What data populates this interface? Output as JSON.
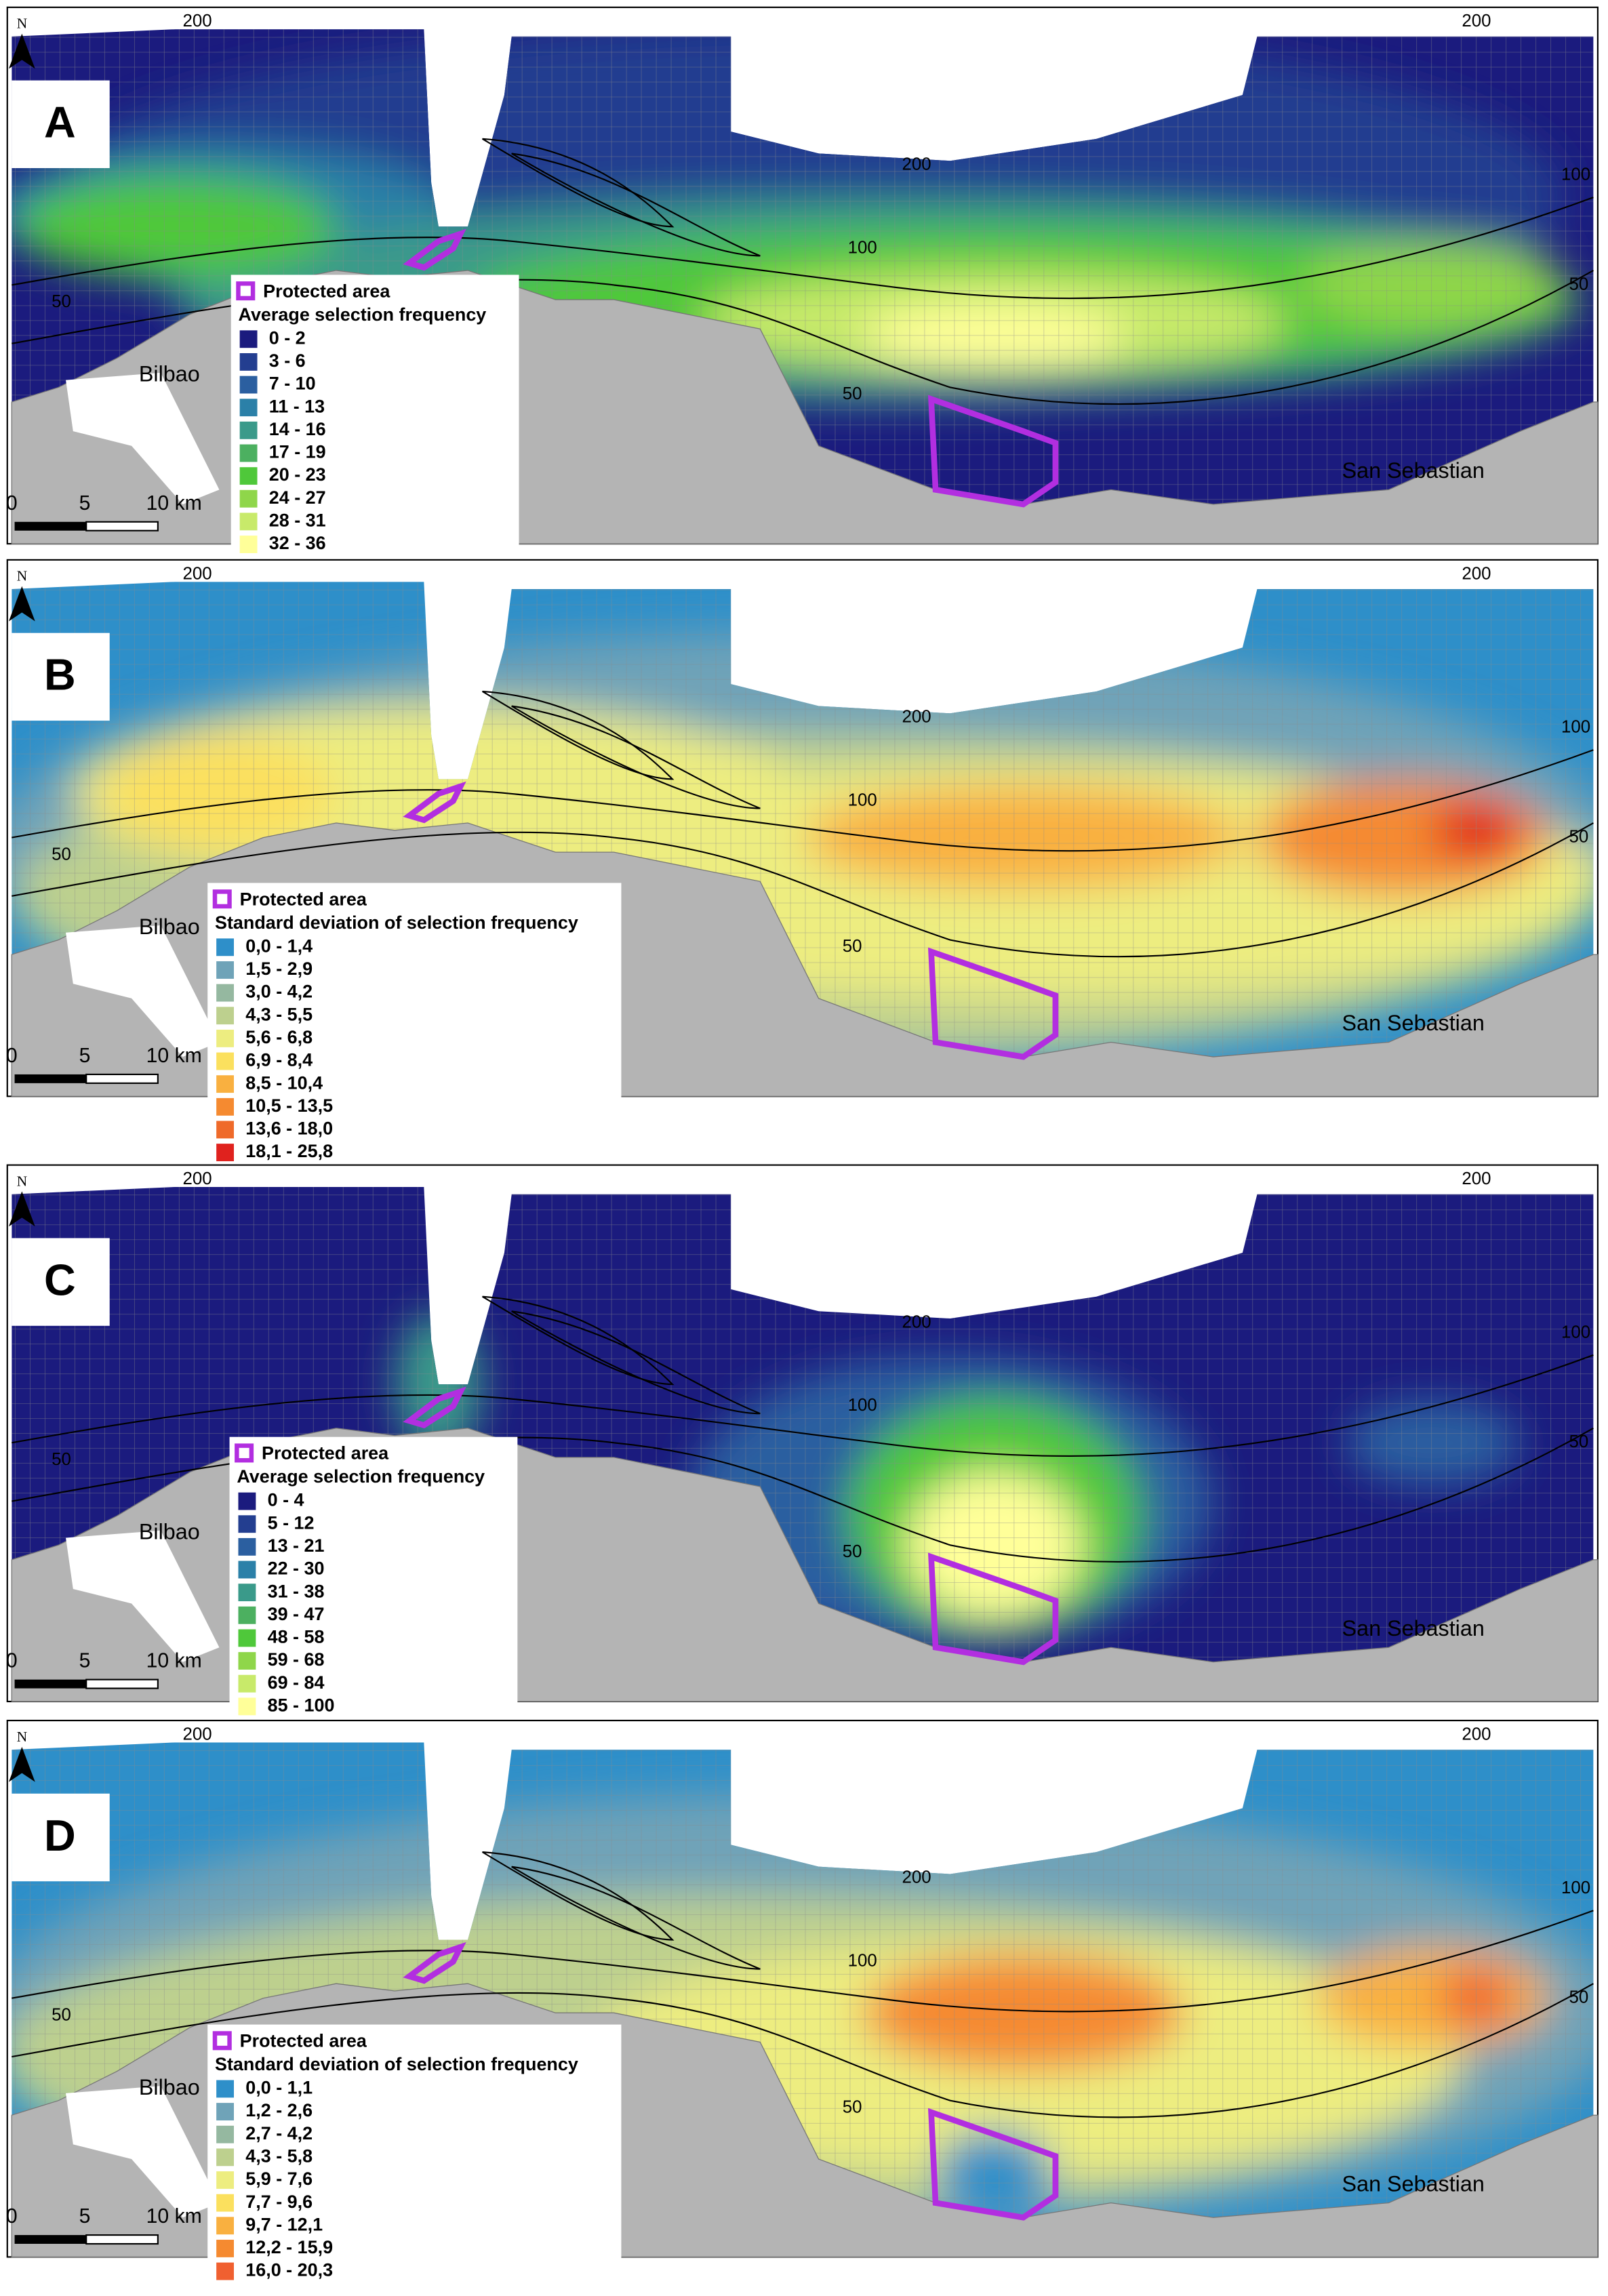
{
  "panels": [
    {
      "label": "A",
      "north": "N",
      "places": [
        "Bilbao",
        "San Sebastian"
      ],
      "contours": [
        "200",
        "200",
        "200",
        "100",
        "100",
        "50",
        "50",
        "50"
      ],
      "scale": [
        "0",
        "5",
        "10 km"
      ],
      "legend": {
        "protected": "Protected area",
        "title": "Average selection frequency",
        "items": [
          {
            "label": "0 - 2",
            "color": "#1b1b7e"
          },
          {
            "label": "3 - 6",
            "color": "#233e90"
          },
          {
            "label": "7 - 10",
            "color": "#2b5fa0"
          },
          {
            "label": "11 - 13",
            "color": "#2b80a8"
          },
          {
            "label": "14 - 16",
            "color": "#3a9a8a"
          },
          {
            "label": "17 - 19",
            "color": "#4cb060"
          },
          {
            "label": "20 - 23",
            "color": "#4fc83a"
          },
          {
            "label": "24 - 27",
            "color": "#8fd64a"
          },
          {
            "label": "28 - 31",
            "color": "#c8ea6a"
          },
          {
            "label": "32 - 36",
            "color": "#ffff99"
          }
        ]
      }
    },
    {
      "label": "B",
      "north": "N",
      "places": [
        "Bilbao",
        "San Sebastian"
      ],
      "contours": [
        "200",
        "200",
        "200",
        "100",
        "100",
        "50",
        "50",
        "50"
      ],
      "scale": [
        "0",
        "5",
        "10 km"
      ],
      "legend": {
        "protected": "Protected area",
        "title": "Standard deviation of selection frequency",
        "items": [
          {
            "label": "0,0 - 1,4",
            "color": "#2e8fc9"
          },
          {
            "label": "1,5 - 2,9",
            "color": "#6fa3b8"
          },
          {
            "label": "3,0 - 4,2",
            "color": "#95b8a0"
          },
          {
            "label": "4,3 - 5,5",
            "color": "#bdd08e"
          },
          {
            "label": "5,6 - 6,8",
            "color": "#eded80"
          },
          {
            "label": "6,9 - 8,4",
            "color": "#fbe05e"
          },
          {
            "label": "8,5 - 10,4",
            "color": "#f9b040"
          },
          {
            "label": "10,5 - 13,5",
            "color": "#f58a30"
          },
          {
            "label": "13,6 - 18,0",
            "color": "#ef6a2a"
          },
          {
            "label": "18,1 - 25,8",
            "color": "#e0221e"
          }
        ]
      }
    },
    {
      "label": "C",
      "north": "N",
      "places": [
        "Bilbao",
        "San Sebastian"
      ],
      "contours": [
        "200",
        "200",
        "200",
        "100",
        "100",
        "50",
        "50",
        "50"
      ],
      "scale": [
        "0",
        "5",
        "10 km"
      ],
      "legend": {
        "protected": "Protected area",
        "title": "Average selection frequency",
        "items": [
          {
            "label": "0 - 4",
            "color": "#1b1b7e"
          },
          {
            "label": "5 - 12",
            "color": "#233e90"
          },
          {
            "label": "13 - 21",
            "color": "#2b5fa0"
          },
          {
            "label": "22 - 30",
            "color": "#2b80a8"
          },
          {
            "label": "31 - 38",
            "color": "#3a9a8a"
          },
          {
            "label": "39 - 47",
            "color": "#4cb060"
          },
          {
            "label": "48 - 58",
            "color": "#4fc83a"
          },
          {
            "label": "59 - 68",
            "color": "#8fd64a"
          },
          {
            "label": "69 - 84",
            "color": "#c8ea6a"
          },
          {
            "label": "85 - 100",
            "color": "#ffff99"
          }
        ]
      }
    },
    {
      "label": "D",
      "north": "N",
      "places": [
        "Bilbao",
        "San Sebastian"
      ],
      "contours": [
        "200",
        "200",
        "200",
        "100",
        "100",
        "50",
        "50",
        "50"
      ],
      "scale": [
        "0",
        "5",
        "10 km"
      ],
      "legend": {
        "protected": "Protected area",
        "title": "Standard deviation of selection frequency",
        "items": [
          {
            "label": "0,0 - 1,1",
            "color": "#2e8fc9"
          },
          {
            "label": "1,2 - 2,6",
            "color": "#6fa3b8"
          },
          {
            "label": "2,7 - 4,2",
            "color": "#95b8a0"
          },
          {
            "label": "4,3 - 5,8",
            "color": "#bdd08e"
          },
          {
            "label": "5,9 - 7,6",
            "color": "#eded80"
          },
          {
            "label": "7,7 - 9,6",
            "color": "#fbe05e"
          },
          {
            "label": "9,7 - 12,1",
            "color": "#f9b040"
          },
          {
            "label": "12,2 - 15,9",
            "color": "#f58a30"
          },
          {
            "label": "16,0 - 20,3",
            "color": "#f06030"
          }
        ]
      }
    }
  ]
}
